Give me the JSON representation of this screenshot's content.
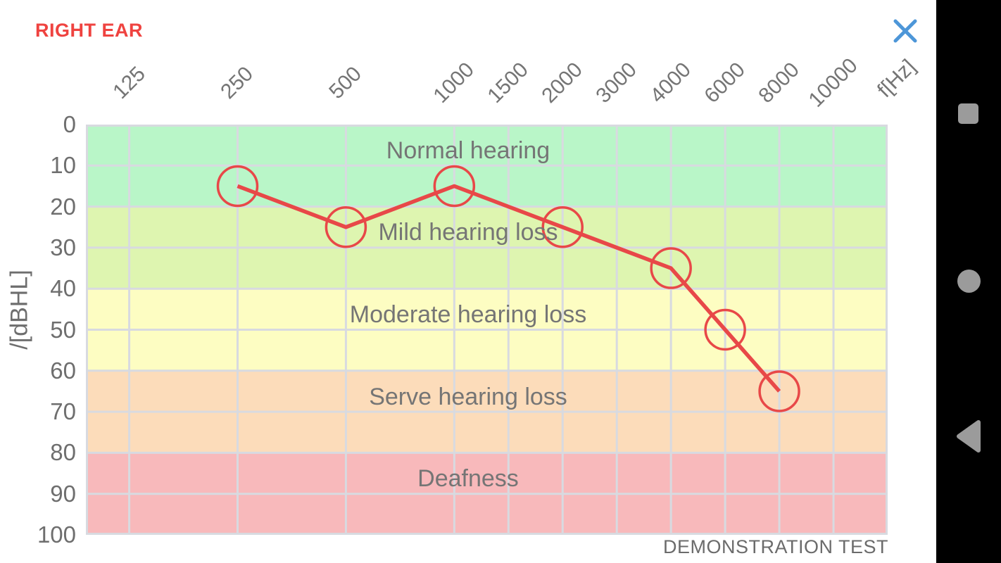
{
  "header": {
    "title": "RIGHT EAR",
    "close_icon": "close-x"
  },
  "footer": {
    "note": "DEMONSTRATION TEST"
  },
  "navbar": {
    "icons": [
      "recents-square-icon",
      "home-circle-icon",
      "back-triangle-icon"
    ],
    "icon_color": "#9b9b9b",
    "background": "#000000"
  },
  "colors": {
    "accent_red": "#ef4340",
    "series_red": "#e84848",
    "close_blue": "#4d96d8",
    "label_gray": "#757575",
    "gridline": "#d8dae0"
  },
  "chart_data": {
    "type": "line",
    "title": "RIGHT EAR",
    "xlabel": "f[Hz]",
    "ylabel": "/[dBHL]",
    "ylim": [
      0,
      100
    ],
    "y_ticks": [
      0,
      10,
      20,
      30,
      40,
      50,
      60,
      70,
      80,
      90,
      100
    ],
    "grid": true,
    "gridline_color": "#d8dae0",
    "legend": "none",
    "x_ticks": [
      {
        "label": "125",
        "pos": 0.05405
      },
      {
        "label": "250",
        "pos": 0.18919
      },
      {
        "label": "500",
        "pos": 0.32432
      },
      {
        "label": "1000",
        "pos": 0.45946
      },
      {
        "label": "1500",
        "pos": 0.52703
      },
      {
        "label": "2000",
        "pos": 0.59459
      },
      {
        "label": "3000",
        "pos": 0.66216
      },
      {
        "label": "4000",
        "pos": 0.72973
      },
      {
        "label": "6000",
        "pos": 0.7973
      },
      {
        "label": "8000",
        "pos": 0.86486
      },
      {
        "label": "10000",
        "pos": 0.93243
      }
    ],
    "bands": [
      {
        "label": "Normal hearing",
        "from": 0,
        "to": 20,
        "color": "#b9f6c8"
      },
      {
        "label": "Mild hearing loss",
        "from": 20,
        "to": 40,
        "color": "#def5b0"
      },
      {
        "label": "Moderate hearing loss",
        "from": 40,
        "to": 60,
        "color": "#fdfdc2"
      },
      {
        "label": "Serve hearing loss",
        "from": 60,
        "to": 80,
        "color": "#fcdcba"
      },
      {
        "label": "Deafness",
        "from": 80,
        "to": 100,
        "color": "#f8b9bb"
      }
    ],
    "series": [
      {
        "name": "right-ear-thresholds",
        "color": "#e84848",
        "marker": "open-circle",
        "points": [
          {
            "f": 250,
            "db": 15,
            "pos": 0.18919
          },
          {
            "f": 500,
            "db": 25,
            "pos": 0.32432
          },
          {
            "f": 1000,
            "db": 15,
            "pos": 0.45946
          },
          {
            "f": 2000,
            "db": 25,
            "pos": 0.59459
          },
          {
            "f": 4000,
            "db": 35,
            "pos": 0.72973
          },
          {
            "f": 6000,
            "db": 50,
            "pos": 0.7973
          },
          {
            "f": 8000,
            "db": 65,
            "pos": 0.86486
          }
        ]
      }
    ]
  }
}
